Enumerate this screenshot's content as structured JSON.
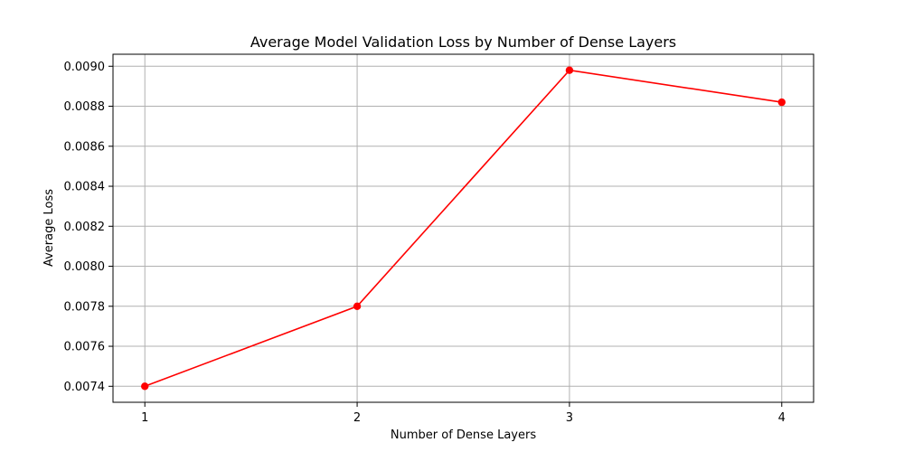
{
  "chart_data": {
    "type": "line",
    "title": "Average Model Validation Loss by Number of Dense Layers",
    "xlabel": "Number of Dense Layers",
    "ylabel": "Average Loss",
    "x": [
      1,
      2,
      3,
      4
    ],
    "x_tick_labels": [
      "1",
      "2",
      "3",
      "4"
    ],
    "y_ticks": [
      0.0074,
      0.0076,
      0.0078,
      0.008,
      0.0082,
      0.0084,
      0.0086,
      0.0088,
      0.009
    ],
    "y_tick_labels": [
      "0.0074",
      "0.0076",
      "0.0078",
      "0.0080",
      "0.0082",
      "0.0084",
      "0.0086",
      "0.0088",
      "0.0090"
    ],
    "xlim": [
      0.85,
      4.15
    ],
    "ylim": [
      0.00732,
      0.00906
    ],
    "grid": true,
    "series": [
      {
        "values": [
          0.0074,
          0.0078,
          0.00898,
          0.00882
        ],
        "color": "#ff0000",
        "marker": "circle"
      }
    ]
  }
}
